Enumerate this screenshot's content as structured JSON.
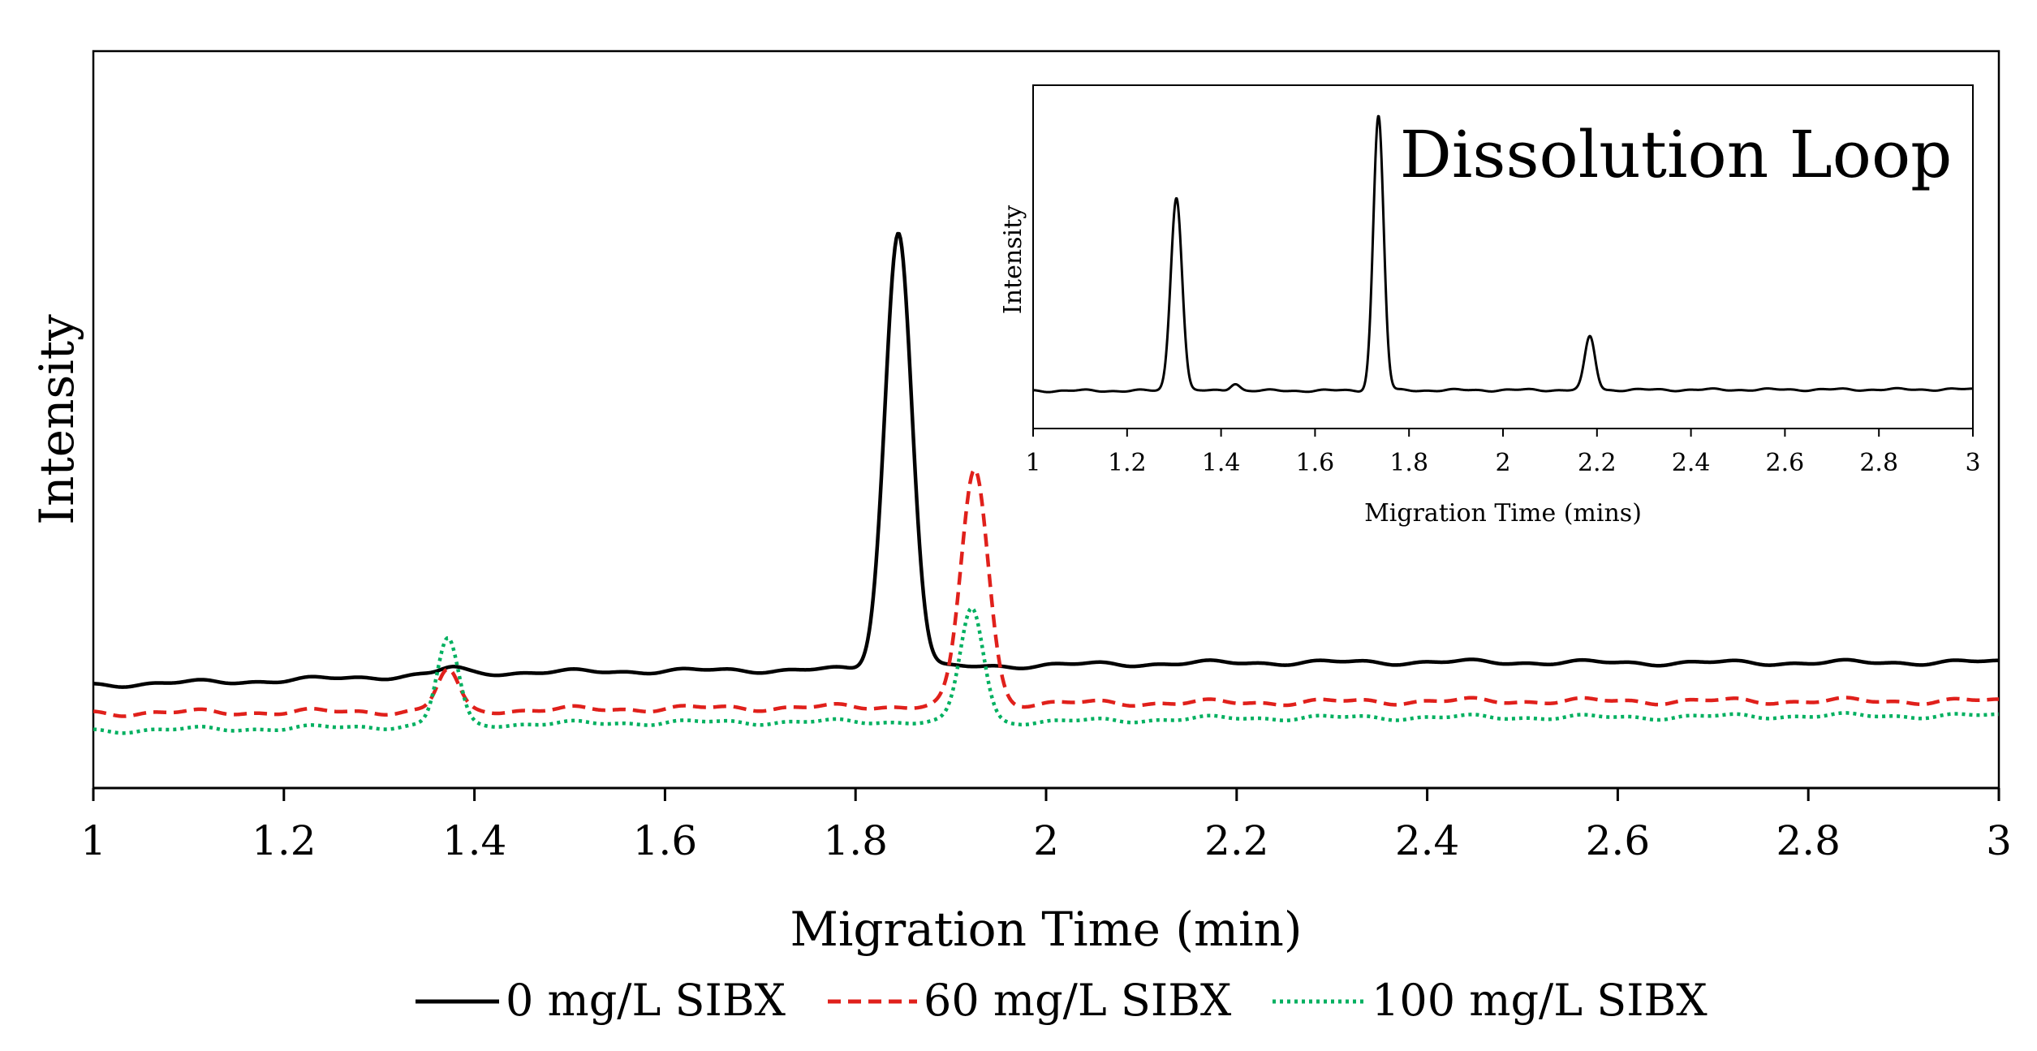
{
  "chart_data": [
    {
      "type": "line",
      "title": "",
      "xlabel": "Migration Time (min)",
      "ylabel": "Intensity",
      "xlim": [
        1,
        3
      ],
      "ylim": [
        0,
        100
      ],
      "x_ticks": [
        "1",
        "1.2",
        "1.4",
        "1.6",
        "1.8",
        "2",
        "2.2",
        "2.4",
        "2.6",
        "2.8",
        "3"
      ],
      "y_ticks_shown": false,
      "grid": false,
      "legend_position": "bottom",
      "series": [
        {
          "name": "0 mg/L SIBX",
          "color": "#000000",
          "style": "solid",
          "baseline": [
            [
              1.0,
              14.0
            ],
            [
              1.2,
              14.6
            ],
            [
              1.4,
              15.6
            ],
            [
              1.6,
              15.9
            ],
            [
              1.8,
              16.1
            ],
            [
              2.0,
              16.7
            ],
            [
              2.2,
              17.0
            ],
            [
              2.4,
              17.1
            ],
            [
              2.6,
              17.0
            ],
            [
              2.8,
              17.0
            ],
            [
              3.0,
              17.1
            ]
          ],
          "peaks": [
            {
              "x": 1.845,
              "height": 59.2,
              "width": 0.014
            },
            {
              "x": 1.375,
              "height": 0.8,
              "width": 0.012
            }
          ],
          "ripple": 0.25
        },
        {
          "name": "60 mg/L SIBX",
          "color": "#e0201b",
          "style": "dashed",
          "baseline": [
            [
              1.0,
              10.2
            ],
            [
              1.2,
              10.3
            ],
            [
              1.4,
              10.5
            ],
            [
              1.6,
              10.8
            ],
            [
              1.8,
              11.0
            ],
            [
              2.0,
              11.5
            ],
            [
              2.2,
              11.6
            ],
            [
              2.4,
              11.8
            ],
            [
              2.6,
              11.8
            ],
            [
              2.8,
              11.8
            ],
            [
              3.0,
              11.8
            ]
          ],
          "peaks": [
            {
              "x": 1.372,
              "height": 5.5,
              "width": 0.011
            },
            {
              "x": 1.925,
              "height": 31.9,
              "width": 0.014
            }
          ],
          "ripple": 0.3
        },
        {
          "name": "100 mg/L SIBX",
          "color": "#00b060",
          "style": "dotted",
          "baseline": [
            [
              1.0,
              7.8
            ],
            [
              1.2,
              8.1
            ],
            [
              1.4,
              8.6
            ],
            [
              1.6,
              8.9
            ],
            [
              1.8,
              9.0
            ],
            [
              2.0,
              9.0
            ],
            [
              2.2,
              9.5
            ],
            [
              2.4,
              9.6
            ],
            [
              2.6,
              9.6
            ],
            [
              2.8,
              9.8
            ],
            [
              3.0,
              9.8
            ]
          ],
          "peaks": [
            {
              "x": 1.372,
              "height": 11.7,
              "width": 0.011
            },
            {
              "x": 1.922,
              "height": 15.4,
              "width": 0.012
            }
          ],
          "ripple": 0.25
        }
      ]
    },
    {
      "type": "line",
      "title": "Dissolution Loop",
      "xlabel": "Migration Time (mins)",
      "ylabel": "Intensity",
      "xlim": [
        1,
        3
      ],
      "ylim": [
        0,
        100
      ],
      "x_ticks": [
        "1",
        "1.2",
        "1.4",
        "1.6",
        "1.8",
        "2",
        "2.2",
        "2.4",
        "2.6",
        "2.8",
        "3"
      ],
      "y_ticks_shown": false,
      "grid": false,
      "series": [
        {
          "name": "Dissolution Loop",
          "color": "#000000",
          "style": "solid",
          "baseline": [
            [
              1.0,
              11.0
            ],
            [
              1.5,
              11.0
            ],
            [
              2.0,
              11.2
            ],
            [
              2.5,
              11.3
            ],
            [
              3.0,
              11.4
            ]
          ],
          "peaks": [
            {
              "x": 1.305,
              "height": 56.5,
              "width": 0.012
            },
            {
              "x": 1.43,
              "height": 2.2,
              "width": 0.01
            },
            {
              "x": 1.735,
              "height": 80.0,
              "width": 0.011
            },
            {
              "x": 2.185,
              "height": 15.5,
              "width": 0.011
            }
          ],
          "ripple": 0.25
        }
      ]
    }
  ]
}
